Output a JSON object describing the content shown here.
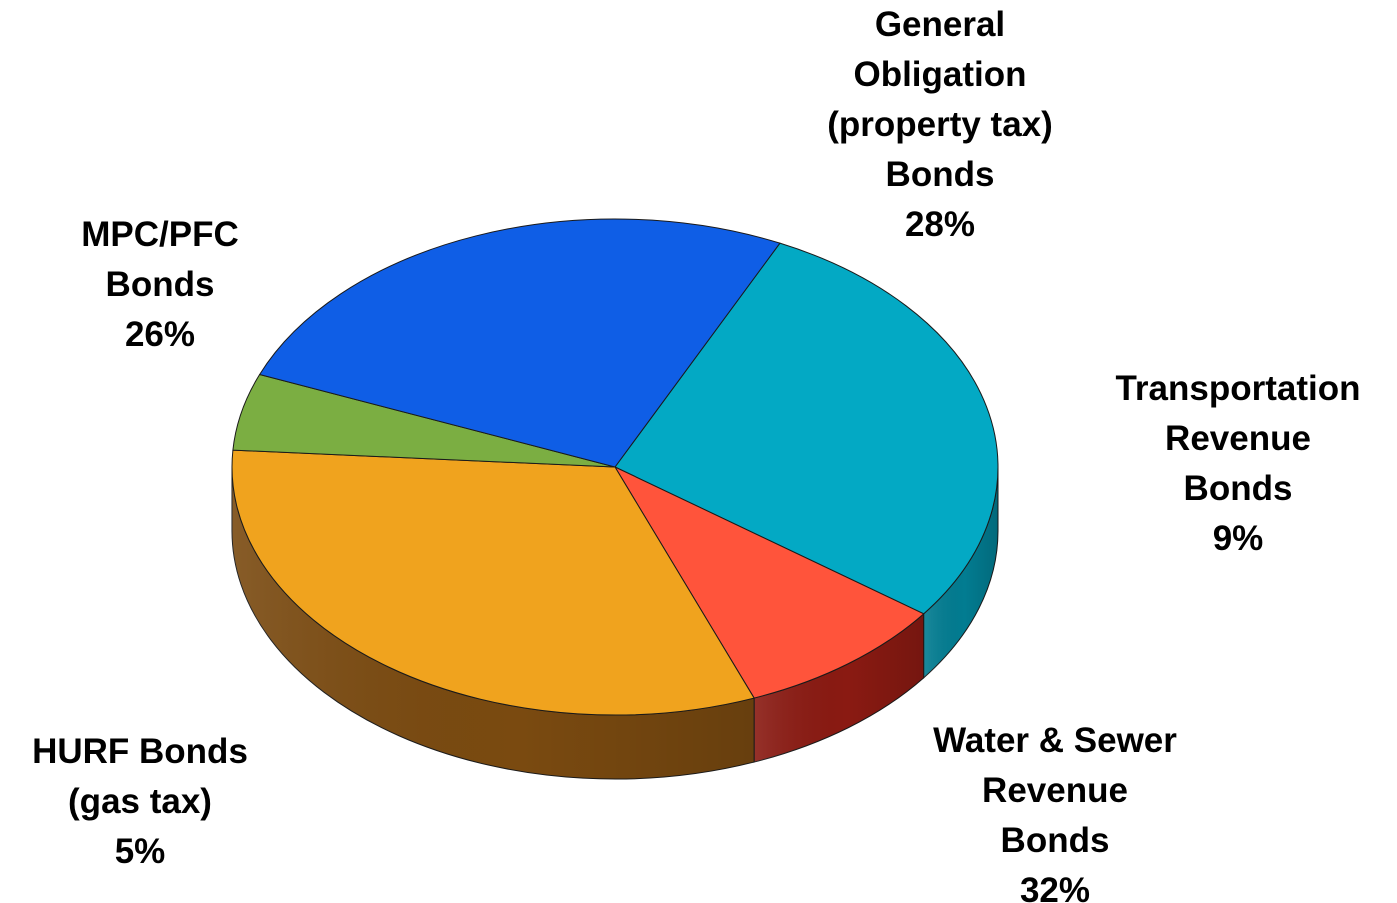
{
  "chart_data": {
    "type": "pie",
    "style": "3d-tilted",
    "unit": "%",
    "slices": [
      {
        "name": "General Obligation (property tax) Bonds",
        "lines": [
          "General",
          "Obligation",
          "(property tax)",
          "Bonds"
        ],
        "pct_label": "28%",
        "value": 28,
        "color": "#03A9C4",
        "side_color": "#027C91"
      },
      {
        "name": "Transportation Revenue Bonds",
        "lines": [
          "Transportation",
          "Revenue",
          "Bonds"
        ],
        "pct_label": "9%",
        "value": 9,
        "color": "#FF543B",
        "side_color": "#8A1A12"
      },
      {
        "name": "Water & Sewer Revenue Bonds",
        "lines": [
          "Water & Sewer",
          "Revenue",
          "Bonds"
        ],
        "pct_label": "32%",
        "value": 32,
        "color": "#F0A31E",
        "side_color": "#7A4A10"
      },
      {
        "name": "HURF Bonds (gas tax)",
        "lines": [
          "HURF Bonds",
          "(gas tax)"
        ],
        "pct_label": "5%",
        "value": 5,
        "color": "#7BAE42",
        "side_color": "#4F7A28"
      },
      {
        "name": "MPC/PFC Bonds",
        "lines": [
          "MPC/PFC",
          "Bonds"
        ],
        "pct_label": "26%",
        "value": 26,
        "color": "#0F5EE6",
        "side_color": "#0A45B0"
      }
    ]
  }
}
